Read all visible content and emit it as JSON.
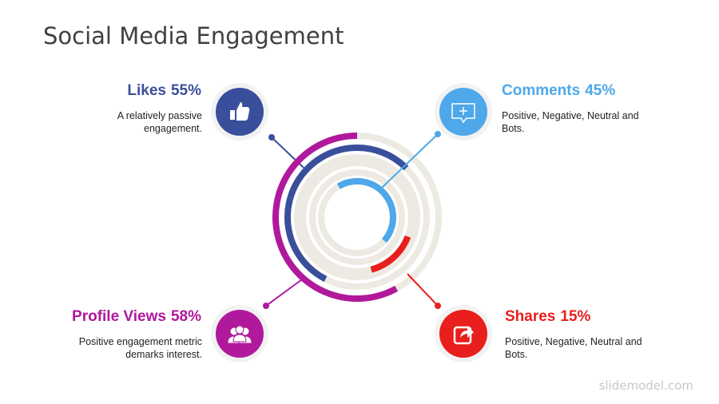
{
  "chart_data": {
    "type": "radial-bar",
    "title": "Social Media Engagement",
    "categories": [
      "Likes",
      "Comments",
      "Shares",
      "Profile Views"
    ],
    "values": [
      55,
      45,
      15,
      58
    ],
    "value_labels": [
      "55%",
      "45%",
      "15%",
      "58%"
    ],
    "colors": [
      "#3a4f9b",
      "#4ea8e9",
      "#e81f1d",
      "#b0199c"
    ],
    "descriptions": [
      "A relatively passive engagement.",
      "Positive, Negative, Neutral and Bots.",
      "Positive, Negative, Neutral and Bots.",
      "Positive engagement metric demarks interest."
    ]
  },
  "watermark": "slidemodel.com"
}
